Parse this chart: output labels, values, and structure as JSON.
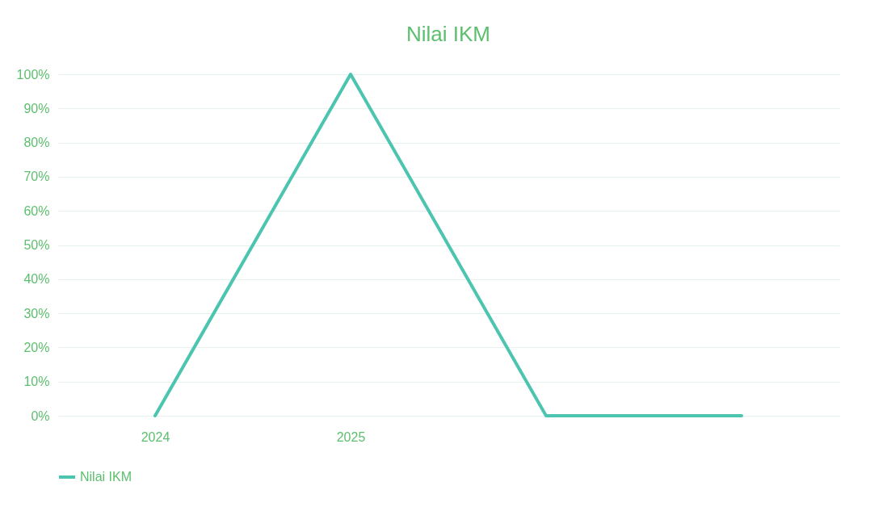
{
  "chart_data": {
    "type": "line",
    "title": "Nilai IKM",
    "categories": [
      "2024",
      "2025",
      null,
      null
    ],
    "series": [
      {
        "name": "Nilai IKM",
        "color": "#4cc5b0",
        "values": [
          0,
          100,
          0,
          0
        ]
      }
    ],
    "ylim": [
      0,
      100
    ],
    "yticks": [
      {
        "value": 0,
        "label": "0%"
      },
      {
        "value": 10,
        "label": "10%"
      },
      {
        "value": 20,
        "label": "20%"
      },
      {
        "value": 30,
        "label": "30%"
      },
      {
        "value": 40,
        "label": "40%"
      },
      {
        "value": 50,
        "label": "50%"
      },
      {
        "value": 60,
        "label": "60%"
      },
      {
        "value": 70,
        "label": "70%"
      },
      {
        "value": 80,
        "label": "80%"
      },
      {
        "value": 90,
        "label": "90%"
      },
      {
        "value": 100,
        "label": "100%"
      }
    ],
    "grid": "y",
    "legend": "bottom",
    "marker": "none",
    "line_style": "solid"
  }
}
